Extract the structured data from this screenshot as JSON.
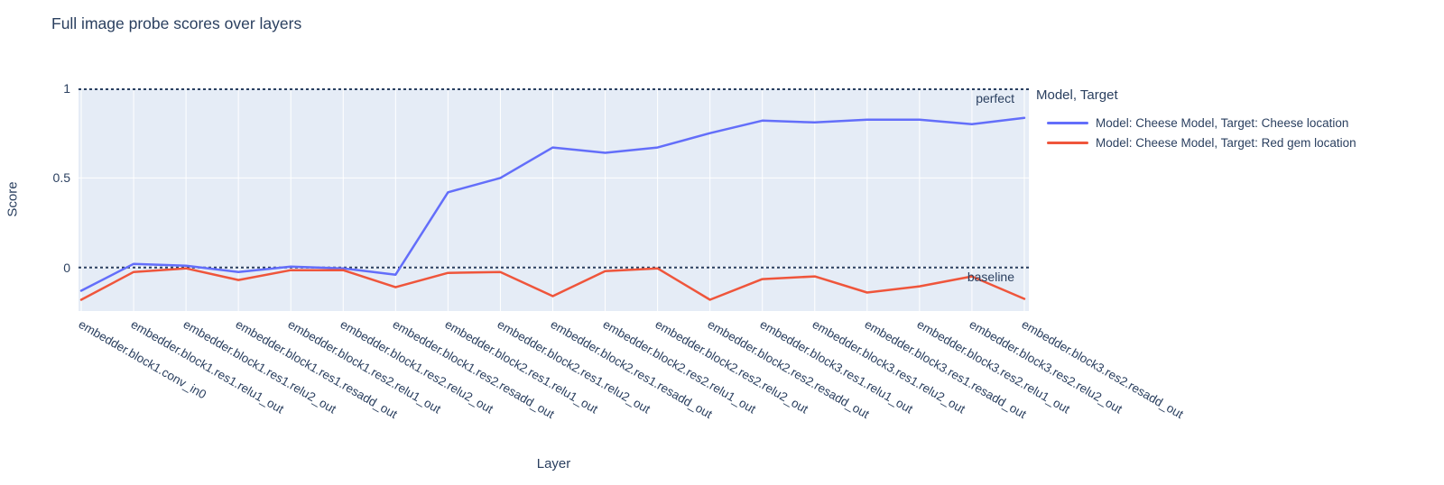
{
  "title": "Full image probe scores over layers",
  "colors": {
    "text": "#2a3f5f",
    "plot_background": "#e5ecf6",
    "gridline": "#ffffff",
    "reference_line": "#2a3f5f",
    "series_cheese": "#636efa",
    "series_red_gem": "#ef553b"
  },
  "legend": {
    "title": "Model, Target"
  },
  "chart_data": {
    "type": "line",
    "title": "Full image probe scores over layers",
    "xlabel": "Layer",
    "ylabel": "Score",
    "ylim": [
      -0.243,
      1.0
    ],
    "yticks": [
      {
        "label": "0",
        "value": 0
      },
      {
        "label": "0.5",
        "value": 0.5
      },
      {
        "label": "1",
        "value": 1
      }
    ],
    "grid": true,
    "legend_position": "right",
    "legend_title": "Model, Target",
    "categories": [
      "embedder.block1.conv_in0",
      "embedder.block1.res1.relu1_out",
      "embedder.block1.res1.relu2_out",
      "embedder.block1.res1.resadd_out",
      "embedder.block1.res2.relu1_out",
      "embedder.block1.res2.relu2_out",
      "embedder.block1.res2.resadd_out",
      "embedder.block2.res1.relu1_out",
      "embedder.block2.res1.relu2_out",
      "embedder.block2.res1.resadd_out",
      "embedder.block2.res2.relu1_out",
      "embedder.block2.res2.relu2_out",
      "embedder.block2.res2.resadd_out",
      "embedder.block3.res1.relu1_out",
      "embedder.block3.res1.relu2_out",
      "embedder.block3.res1.resadd_out",
      "embedder.block3.res2.relu1_out",
      "embedder.block3.res2.relu2_out",
      "embedder.block3.res2.resadd_out"
    ],
    "series": [
      {
        "name": "Model: Cheese Model, Target: Cheese location",
        "color": "#636efa",
        "values": [
          -0.13,
          0.02,
          0.01,
          -0.025,
          0.005,
          -0.005,
          -0.04,
          0.42,
          0.5,
          0.67,
          0.64,
          0.67,
          0.75,
          0.82,
          0.81,
          0.825,
          0.825,
          0.8,
          0.835
        ]
      },
      {
        "name": "Model: Cheese Model, Target: Red gem location",
        "color": "#ef553b",
        "values": [
          -0.18,
          -0.025,
          -0.005,
          -0.07,
          -0.015,
          -0.015,
          -0.11,
          -0.03,
          -0.025,
          -0.16,
          -0.02,
          -0.005,
          -0.18,
          -0.065,
          -0.05,
          -0.14,
          -0.105,
          -0.05,
          -0.175
        ]
      }
    ],
    "reference_lines": [
      {
        "y": 1.0,
        "label": "perfect",
        "style": "dotted"
      },
      {
        "y": 0.0,
        "label": "baseline",
        "style": "dotted"
      }
    ]
  }
}
